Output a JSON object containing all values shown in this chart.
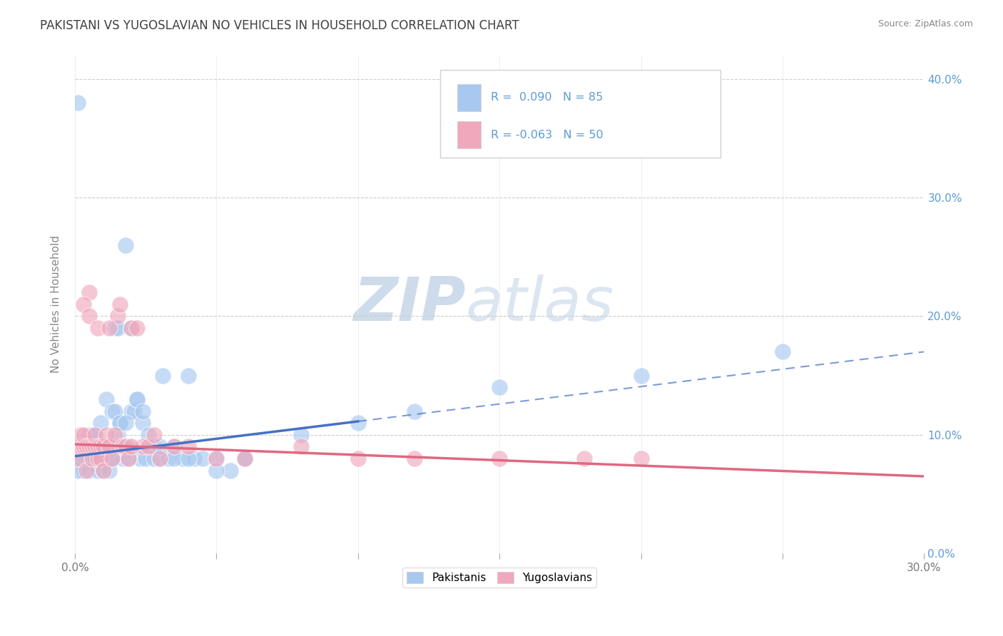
{
  "title": "PAKISTANI VS YUGOSLAVIAN NO VEHICLES IN HOUSEHOLD CORRELATION CHART",
  "source": "Source: ZipAtlas.com",
  "ylabel": "No Vehicles in Household",
  "ytick_vals": [
    0.0,
    0.1,
    0.2,
    0.3,
    0.4
  ],
  "ytick_labels": [
    "0%",
    "10.0%",
    "20.0%",
    "30.0%",
    "40.0%"
  ],
  "xmin": 0.0,
  "xmax": 0.3,
  "ymin": 0.0,
  "ymax": 0.42,
  "r_blue": 0.09,
  "n_blue": 85,
  "r_pink": -0.063,
  "n_pink": 50,
  "blue_color": "#a8c8f0",
  "pink_color": "#f0a8bc",
  "blue_line_color": "#4472c4",
  "pink_line_color": "#e06880",
  "blue_line_solid_end": 0.1,
  "blue_line_start_y": 0.082,
  "blue_line_end_y": 0.17,
  "pink_line_start_y": 0.092,
  "pink_line_end_y": 0.065,
  "legend_label_blue": "Pakistanis",
  "legend_label_pink": "Yugoslavians",
  "watermark_zip": "ZIP",
  "watermark_atlas": "atlas",
  "background_color": "#ffffff",
  "title_color": "#404040",
  "title_fontsize": 12,
  "legend_text_color": "#5b9bd5",
  "right_axis_color": "#5b9bd5",
  "blue_scatter_x": [
    0.001,
    0.002,
    0.003,
    0.003,
    0.004,
    0.005,
    0.005,
    0.006,
    0.006,
    0.007,
    0.007,
    0.008,
    0.008,
    0.009,
    0.009,
    0.01,
    0.01,
    0.011,
    0.011,
    0.012,
    0.012,
    0.013,
    0.013,
    0.014,
    0.015,
    0.015,
    0.016,
    0.017,
    0.018,
    0.019,
    0.02,
    0.021,
    0.022,
    0.023,
    0.024,
    0.025,
    0.026,
    0.027,
    0.028,
    0.03,
    0.031,
    0.033,
    0.035,
    0.038,
    0.04,
    0.042,
    0.045,
    0.05,
    0.055,
    0.06,
    0.001,
    0.002,
    0.003,
    0.004,
    0.005,
    0.006,
    0.007,
    0.008,
    0.009,
    0.01,
    0.011,
    0.012,
    0.013,
    0.014,
    0.015,
    0.016,
    0.017,
    0.018,
    0.019,
    0.02,
    0.022,
    0.024,
    0.026,
    0.028,
    0.03,
    0.035,
    0.04,
    0.05,
    0.06,
    0.08,
    0.1,
    0.12,
    0.15,
    0.2,
    0.25
  ],
  "blue_scatter_y": [
    0.38,
    0.09,
    0.08,
    0.07,
    0.09,
    0.09,
    0.1,
    0.08,
    0.1,
    0.08,
    0.1,
    0.09,
    0.09,
    0.09,
    0.11,
    0.09,
    0.08,
    0.09,
    0.13,
    0.08,
    0.09,
    0.08,
    0.12,
    0.19,
    0.1,
    0.19,
    0.11,
    0.08,
    0.26,
    0.09,
    0.12,
    0.12,
    0.13,
    0.08,
    0.11,
    0.08,
    0.09,
    0.09,
    0.08,
    0.08,
    0.15,
    0.08,
    0.09,
    0.08,
    0.15,
    0.08,
    0.08,
    0.08,
    0.07,
    0.08,
    0.07,
    0.08,
    0.09,
    0.09,
    0.07,
    0.08,
    0.08,
    0.07,
    0.08,
    0.07,
    0.09,
    0.07,
    0.08,
    0.12,
    0.09,
    0.11,
    0.09,
    0.11,
    0.08,
    0.19,
    0.13,
    0.12,
    0.1,
    0.09,
    0.09,
    0.08,
    0.08,
    0.07,
    0.08,
    0.1,
    0.11,
    0.12,
    0.14,
    0.15,
    0.17
  ],
  "pink_scatter_x": [
    0.001,
    0.001,
    0.002,
    0.002,
    0.003,
    0.003,
    0.004,
    0.004,
    0.005,
    0.005,
    0.006,
    0.006,
    0.007,
    0.007,
    0.008,
    0.008,
    0.009,
    0.009,
    0.01,
    0.01,
    0.011,
    0.012,
    0.013,
    0.014,
    0.015,
    0.016,
    0.017,
    0.018,
    0.019,
    0.02,
    0.022,
    0.024,
    0.026,
    0.028,
    0.03,
    0.035,
    0.04,
    0.05,
    0.06,
    0.08,
    0.1,
    0.12,
    0.15,
    0.18,
    0.2,
    0.003,
    0.005,
    0.008,
    0.012,
    0.02
  ],
  "pink_scatter_y": [
    0.09,
    0.08,
    0.09,
    0.1,
    0.09,
    0.1,
    0.09,
    0.07,
    0.22,
    0.09,
    0.08,
    0.09,
    0.09,
    0.1,
    0.08,
    0.09,
    0.09,
    0.08,
    0.09,
    0.07,
    0.1,
    0.09,
    0.08,
    0.1,
    0.2,
    0.21,
    0.09,
    0.09,
    0.08,
    0.19,
    0.19,
    0.09,
    0.09,
    0.1,
    0.08,
    0.09,
    0.09,
    0.08,
    0.08,
    0.09,
    0.08,
    0.08,
    0.08,
    0.08,
    0.08,
    0.21,
    0.2,
    0.19,
    0.19,
    0.09
  ]
}
